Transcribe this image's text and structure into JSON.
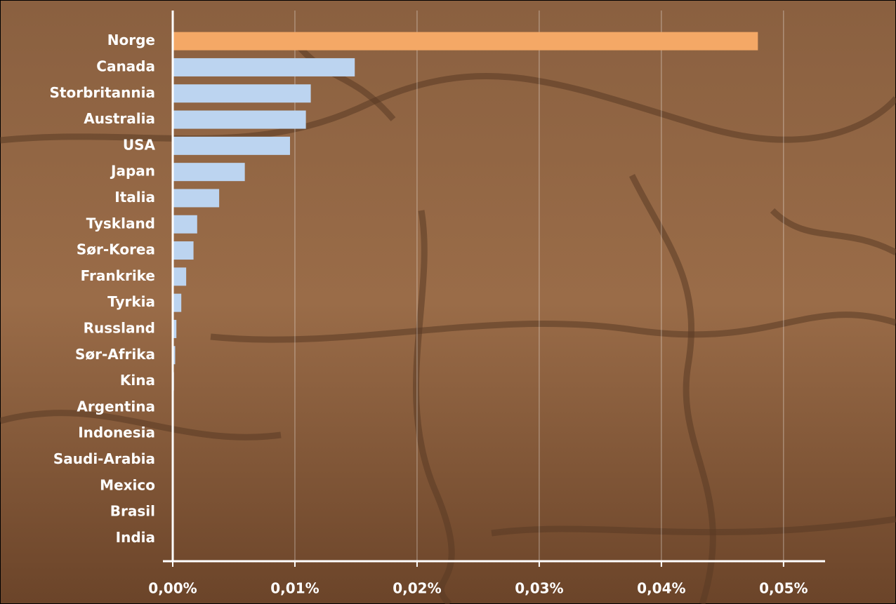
{
  "chart_data": {
    "type": "bar",
    "orientation": "horizontal",
    "categories": [
      "Norge",
      "Canada",
      "Storbritannia",
      "Australia",
      "USA",
      "Japan",
      "Italia",
      "Tyskland",
      "Sør-Korea",
      "Frankrike",
      "Tyrkia",
      "Russland",
      "Sør-Afrika",
      "Kina",
      "Argentina",
      "Indonesia",
      "Saudi-Arabia",
      "Mexico",
      "Brasil",
      "India"
    ],
    "values": [
      0.0479,
      0.0149,
      0.0113,
      0.0109,
      0.0096,
      0.0059,
      0.0038,
      0.002,
      0.0017,
      0.0011,
      0.0007,
      0.0003,
      0.0002,
      0.0001,
      0,
      0,
      0,
      0,
      0,
      0
    ],
    "colors": [
      "#f4a866",
      "#bcd4f0",
      "#bcd4f0",
      "#bcd4f0",
      "#bcd4f0",
      "#bcd4f0",
      "#bcd4f0",
      "#bcd4f0",
      "#bcd4f0",
      "#bcd4f0",
      "#bcd4f0",
      "#bcd4f0",
      "#bcd4f0",
      "#bcd4f0",
      "#bcd4f0",
      "#bcd4f0",
      "#bcd4f0",
      "#bcd4f0",
      "#bcd4f0",
      "#bcd4f0"
    ],
    "xlim": [
      0,
      0.0534
    ],
    "xticks": [
      {
        "value": 0,
        "label": "0,00%"
      },
      {
        "value": 0.01,
        "label": "0,01%"
      },
      {
        "value": 0.02,
        "label": "0,02%"
      },
      {
        "value": 0.03,
        "label": "0,03%"
      },
      {
        "value": 0.04,
        "label": "0,04%"
      },
      {
        "value": 0.05,
        "label": "0,05%"
      }
    ],
    "grid": true
  }
}
